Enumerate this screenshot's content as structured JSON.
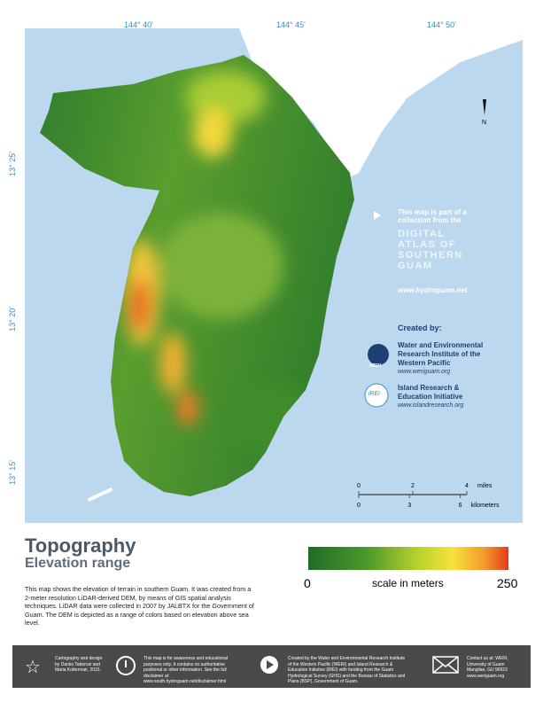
{
  "map": {
    "longitude_labels": [
      "144° 40'",
      "144° 45'",
      "144° 50'"
    ],
    "latitude_labels": [
      "13° 25'",
      "13° 20'",
      "13° 15'"
    ],
    "north": "N"
  },
  "info": {
    "intro": "This map is part of a collection from the",
    "atlas_title": [
      "DIGITAL",
      "ATLAS OF",
      "SOUTHERN",
      "GUAM"
    ],
    "url": "www.hydroguam.net",
    "created_by": "Created by:",
    "orgs": [
      {
        "logo": "WERI",
        "name": "Water and Environmental Research Institute of the Western Pacific",
        "url": "www.weriguam.org"
      },
      {
        "logo": "iREi",
        "name": "Island Research & Education Initiative",
        "url": "www.islandresearch.org"
      }
    ]
  },
  "scale_bar": {
    "miles": {
      "ticks": [
        0,
        2,
        4
      ],
      "unit": "miles"
    },
    "kilometers": {
      "ticks": [
        0,
        3,
        6
      ],
      "unit": "kilometers"
    }
  },
  "title": "Topography",
  "subtitle": "Elevation range",
  "legend": {
    "min": 0,
    "max": 250,
    "label": "scale in meters"
  },
  "description": "This map shows the elevation of terrain in southern Guam. It was created from a 2-meter resolution LiDAR-derived DEM, by means of GIS spatial analysis techniques. LiDAR data were collected in 2007 by JALBTX for the Government of Guam. The DEM is depicted as a range of colors based on elevation above sea level.",
  "footer": [
    "Cartography and design by Danko Taborosi and Maria Kottermair, 2015.",
    "This map is for awareness and educational purposes only. It contains no authoritative positional or other information. See the full disclaimer at: www.south.hydroguam.net/disclaimer.html",
    "Created by the Water and Environmental Research Institute of the Western Pacific (WERI) and Island Research & Education Initiative (IREI) with funding from the Guam Hydrological Survey (GHS) and the Bureau of Statistics and Plans (BSP), Government of Guam.",
    "Contact us at: WERI, University of Guam Mangilao, GU 96923 www.weriguam.org"
  ]
}
